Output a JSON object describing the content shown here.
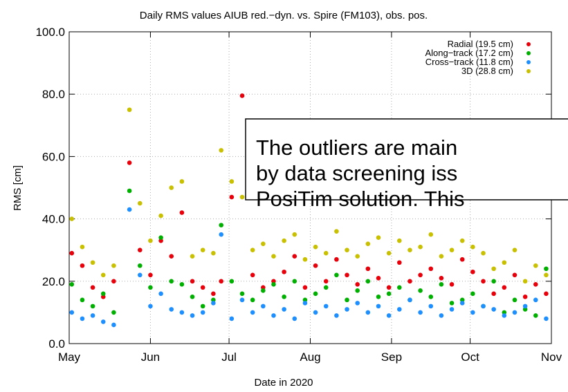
{
  "chart_data": {
    "type": "scatter",
    "title": "Daily RMS values AIUB red.−dyn. vs. Spire (FM103), obs. pos.",
    "x_label": "Date in 2020",
    "y_label": "RMS [cm]",
    "x": [
      1,
      5,
      9,
      13,
      17,
      23,
      27,
      31,
      35,
      39,
      43,
      47,
      51,
      55,
      58,
      62,
      66,
      70,
      74,
      78,
      82,
      86,
      90,
      94,
      98,
      102,
      106,
      110,
      114,
      118,
      122,
      126,
      130,
      134,
      138,
      142,
      146,
      150,
      154,
      158,
      162,
      166,
      170,
      174,
      178,
      182
    ],
    "series": [
      {
        "name": "Radial (19.5 cm)",
        "color": "#e8000b",
        "values": [
          29,
          25,
          18,
          15,
          20,
          58,
          30,
          22,
          33,
          28,
          42,
          20,
          18,
          16,
          20,
          47,
          79.5,
          22,
          18,
          20,
          23,
          28,
          18,
          25,
          20,
          27,
          22,
          19,
          24,
          21,
          18,
          26,
          20,
          22,
          24,
          21,
          19,
          27,
          23,
          20,
          16,
          18,
          22,
          15,
          19,
          16
        ]
      },
      {
        "name": "Along−track (17.2 cm)",
        "color": "#00b000",
        "values": [
          19,
          14,
          12,
          16,
          10,
          49,
          25,
          18,
          34,
          20,
          19,
          15,
          12,
          14,
          38,
          20,
          16,
          14,
          17,
          19,
          15,
          20,
          14,
          16,
          18,
          22,
          14,
          17,
          20,
          15,
          16,
          18,
          14,
          17,
          15,
          19,
          13,
          14,
          16,
          12,
          20,
          10,
          14,
          11,
          9,
          24
        ]
      },
      {
        "name": "Cross−track (11.8 cm)",
        "color": "#1e8fff",
        "values": [
          10,
          8,
          9,
          7,
          6,
          43,
          22,
          12,
          16,
          11,
          10,
          9,
          10,
          13,
          35,
          8,
          14,
          10,
          12,
          9,
          11,
          8,
          13,
          10,
          12,
          9,
          11,
          13,
          10,
          12,
          9,
          11,
          14,
          10,
          12,
          9,
          11,
          13,
          10,
          12,
          11,
          9,
          10,
          12,
          14,
          8
        ]
      },
      {
        "name": "3D (28.8 cm)",
        "color": "#c8c000",
        "values": [
          40,
          31,
          26,
          22,
          25,
          75,
          45,
          33,
          41,
          50,
          52,
          28,
          30,
          29,
          62,
          52,
          47,
          30,
          32,
          28,
          33,
          35,
          27,
          31,
          29,
          36,
          30,
          28,
          32,
          34,
          29,
          33,
          30,
          31,
          35,
          28,
          30,
          33,
          31,
          29,
          24,
          26,
          30,
          20,
          25,
          22
        ]
      }
    ],
    "xlim": [
      0,
      184
    ],
    "xticks": [
      {
        "value": 0,
        "label": "May"
      },
      {
        "value": 31,
        "label": "Jun"
      },
      {
        "value": 61,
        "label": "Jul"
      },
      {
        "value": 92,
        "label": "Aug"
      },
      {
        "value": 123,
        "label": "Sep"
      },
      {
        "value": 153,
        "label": "Oct"
      },
      {
        "value": 184,
        "label": "Nov"
      }
    ],
    "ylim": [
      0,
      100
    ],
    "yticks": [
      {
        "value": 0,
        "label": "0.0"
      },
      {
        "value": 20,
        "label": "20.0"
      },
      {
        "value": 40,
        "label": "40.0"
      },
      {
        "value": 60,
        "label": "60.0"
      },
      {
        "value": 80,
        "label": "80.0"
      },
      {
        "value": 100,
        "label": "100.0"
      }
    ],
    "grid": true,
    "legend": "top-right",
    "annotation": {
      "lines": [
        "The outliers are main",
        "by data screening iss",
        "PosiTim solution. This"
      ]
    }
  }
}
